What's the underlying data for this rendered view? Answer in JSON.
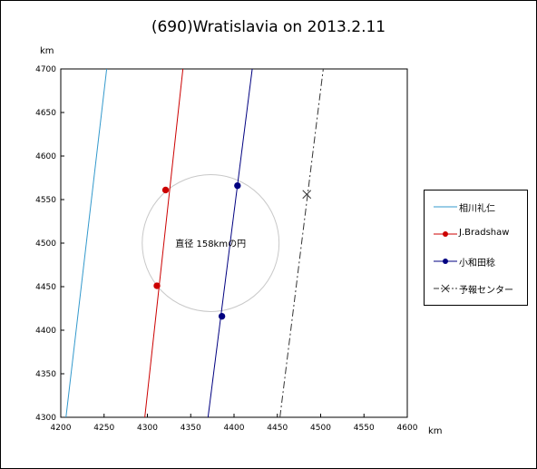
{
  "chart_data": {
    "type": "line",
    "title": "(690)Wratislavia on 2013.2.11",
    "xlabel": "km",
    "ylabel": "km",
    "xlim": [
      4200,
      4600
    ],
    "ylim": [
      4300,
      4700
    ],
    "x_ticks": [
      4200,
      4250,
      4300,
      4350,
      4400,
      4450,
      4500,
      4550,
      4600
    ],
    "y_ticks": [
      4300,
      4350,
      4400,
      4450,
      4500,
      4550,
      4600,
      4650,
      4700
    ],
    "grid": false,
    "legend_position": "right",
    "circle": {
      "label": "直径 158kmの円",
      "center": [
        4373,
        4500
      ],
      "diameter_km": 158,
      "color": "#c8c8c8"
    },
    "series": [
      {
        "name": "相川礼仁",
        "color": "#3399cc",
        "style": "solid",
        "points": [
          [
            4206,
            4300
          ],
          [
            4253,
            4700
          ]
        ],
        "markers": []
      },
      {
        "name": "J.Bradshaw",
        "color": "#cc0000",
        "style": "solid",
        "points": [
          [
            4297,
            4300
          ],
          [
            4341,
            4700
          ]
        ],
        "markers": [
          [
            4311,
            4451
          ],
          [
            4321,
            4561
          ]
        ]
      },
      {
        "name": "小和田稔",
        "color": "#000080",
        "style": "solid",
        "points": [
          [
            4370,
            4300
          ],
          [
            4421,
            4700
          ]
        ],
        "markers": [
          [
            4386,
            4416
          ],
          [
            4404,
            4566
          ]
        ]
      },
      {
        "name": "予報センター",
        "color": "#333333",
        "style": "dashdot",
        "points": [
          [
            4453,
            4300
          ],
          [
            4503,
            4700
          ]
        ],
        "center_marker": [
          4484,
          4556
        ]
      }
    ]
  }
}
